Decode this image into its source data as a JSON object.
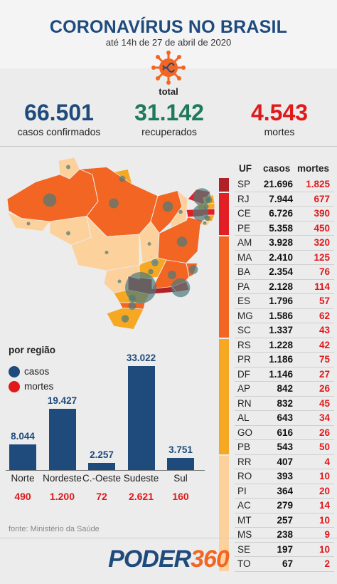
{
  "header": {
    "title": "CORONAVÍRUS NO BRASIL",
    "subtitle": "até 14h de 27 de abril de 2020"
  },
  "totals": {
    "label": "total",
    "confirmed": {
      "value": "66.501",
      "label": "casos confirmados",
      "color": "#1e4a7c"
    },
    "recovered": {
      "value": "31.142",
      "label": "recuperados",
      "color": "#1f7a5a"
    },
    "deaths": {
      "value": "4.543",
      "label": "mortes",
      "color": "#e0191b"
    }
  },
  "colors": {
    "navy": "#1e4a7c",
    "red": "#e0191b",
    "green": "#1f7a5a",
    "tier_dark_red": "#b02027",
    "tier_red": "#e31f26",
    "tier_orange": "#f26522",
    "tier_amber": "#f7a823",
    "tier_light": "#fcd19c"
  },
  "chart_data": [
    {
      "type": "table",
      "columns": [
        "UF",
        "casos",
        "mortes"
      ],
      "rows": [
        {
          "uf": "SP",
          "casos": "21.696",
          "mortes": "1.825"
        },
        {
          "uf": "RJ",
          "casos": "7.944",
          "mortes": "677"
        },
        {
          "uf": "CE",
          "casos": "6.726",
          "mortes": "390"
        },
        {
          "uf": "PE",
          "casos": "5.358",
          "mortes": "450"
        },
        {
          "uf": "AM",
          "casos": "3.928",
          "mortes": "320"
        },
        {
          "uf": "MA",
          "casos": "2.410",
          "mortes": "125"
        },
        {
          "uf": "BA",
          "casos": "2.354",
          "mortes": "76"
        },
        {
          "uf": "PA",
          "casos": "2.128",
          "mortes": "114"
        },
        {
          "uf": "ES",
          "casos": "1.796",
          "mortes": "57"
        },
        {
          "uf": "MG",
          "casos": "1.586",
          "mortes": "62"
        },
        {
          "uf": "SC",
          "casos": "1.337",
          "mortes": "43"
        },
        {
          "uf": "RS",
          "casos": "1.228",
          "mortes": "42"
        },
        {
          "uf": "PR",
          "casos": "1.186",
          "mortes": "75"
        },
        {
          "uf": "DF",
          "casos": "1.146",
          "mortes": "27"
        },
        {
          "uf": "AP",
          "casos": "842",
          "mortes": "26"
        },
        {
          "uf": "RN",
          "casos": "832",
          "mortes": "45"
        },
        {
          "uf": "AL",
          "casos": "643",
          "mortes": "34"
        },
        {
          "uf": "GO",
          "casos": "616",
          "mortes": "26"
        },
        {
          "uf": "PB",
          "casos": "543",
          "mortes": "50"
        },
        {
          "uf": "RR",
          "casos": "407",
          "mortes": "4"
        },
        {
          "uf": "RO",
          "casos": "393",
          "mortes": "10"
        },
        {
          "uf": "PI",
          "casos": "364",
          "mortes": "20"
        },
        {
          "uf": "AC",
          "casos": "279",
          "mortes": "14"
        },
        {
          "uf": "MT",
          "casos": "257",
          "mortes": "10"
        },
        {
          "uf": "MS",
          "casos": "238",
          "mortes": "9"
        },
        {
          "uf": "SE",
          "casos": "197",
          "mortes": "10"
        },
        {
          "uf": "TO",
          "casos": "67",
          "mortes": "2"
        }
      ],
      "tiers": [
        {
          "rows": 1,
          "color": "#b02027"
        },
        {
          "rows": 3,
          "color": "#e31f26"
        },
        {
          "rows": 7,
          "color": "#f26522"
        },
        {
          "rows": 8,
          "color": "#f7a823"
        },
        {
          "rows": 8,
          "color": "#fcd19c"
        }
      ]
    },
    {
      "type": "bar",
      "title": "por região",
      "categories": [
        "Norte",
        "Nordeste",
        "C.-Oeste",
        "Sudeste",
        "Sul"
      ],
      "series": [
        {
          "name": "casos",
          "values": [
            8044,
            19427,
            2257,
            33022,
            3751
          ],
          "labels": [
            "8.044",
            "19.427",
            "2.257",
            "33.022",
            "3.751"
          ]
        },
        {
          "name": "mortes",
          "values": [
            490,
            1200,
            72,
            2621,
            160
          ],
          "labels": [
            "490",
            "1.200",
            "72",
            "2.621",
            "160"
          ]
        }
      ],
      "ylim": [
        0,
        33022
      ]
    }
  ],
  "map": {
    "states": [
      {
        "uf": "RR",
        "tier": 4
      },
      {
        "uf": "AP",
        "tier": 3
      },
      {
        "uf": "AM",
        "tier": 2
      },
      {
        "uf": "PA",
        "tier": 2
      },
      {
        "uf": "AC",
        "tier": 4
      },
      {
        "uf": "RO",
        "tier": 4
      },
      {
        "uf": "MT",
        "tier": 4
      },
      {
        "uf": "TO",
        "tier": 4
      },
      {
        "uf": "MA",
        "tier": 2
      },
      {
        "uf": "PI",
        "tier": 4
      },
      {
        "uf": "CE",
        "tier": 1
      },
      {
        "uf": "RN",
        "tier": 3
      },
      {
        "uf": "PB",
        "tier": 3
      },
      {
        "uf": "PE",
        "tier": 1
      },
      {
        "uf": "AL",
        "tier": 3
      },
      {
        "uf": "SE",
        "tier": 4
      },
      {
        "uf": "BA",
        "tier": 2
      },
      {
        "uf": "GO",
        "tier": 3
      },
      {
        "uf": "DF",
        "tier": 3
      },
      {
        "uf": "MG",
        "tier": 2
      },
      {
        "uf": "ES",
        "tier": 2
      },
      {
        "uf": "RJ",
        "tier": 1
      },
      {
        "uf": "SP",
        "tier": 0
      },
      {
        "uf": "MS",
        "tier": 4
      },
      {
        "uf": "PR",
        "tier": 3
      },
      {
        "uf": "SC",
        "tier": 2
      },
      {
        "uf": "RS",
        "tier": 3
      }
    ]
  },
  "legend": {
    "cases": "casos",
    "deaths": "mortes"
  },
  "source": "fonte: Ministério da Saúde",
  "brand": {
    "part1": "PODER",
    "part2": "360"
  }
}
